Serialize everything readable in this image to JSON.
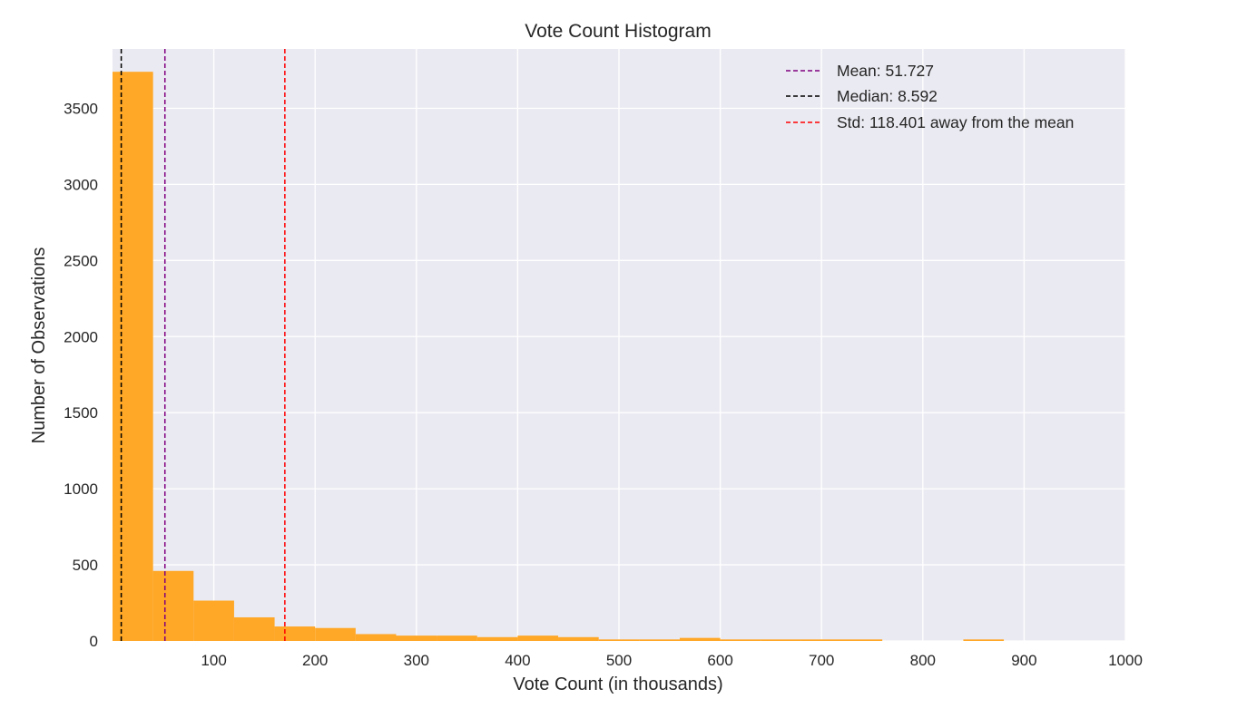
{
  "chart_data": {
    "type": "bar",
    "title": "Vote Count Histogram",
    "xlabel": "Vote Count (in thousands)",
    "ylabel": "Number of Observations",
    "xlim": [
      0,
      1000
    ],
    "ylim": [
      0,
      3890
    ],
    "xticks": [
      100,
      200,
      300,
      400,
      500,
      600,
      700,
      800,
      900,
      1000
    ],
    "yticks": [
      0,
      500,
      1000,
      1500,
      2000,
      2500,
      3000,
      3500
    ],
    "grid": true,
    "legend_position": "top-right",
    "bar_color": "#ffa726",
    "background_color": "#eaeaf2",
    "bins": [
      {
        "x0": 0,
        "x1": 40,
        "count": 3740
      },
      {
        "x0": 40,
        "x1": 80,
        "count": 460
      },
      {
        "x0": 80,
        "x1": 120,
        "count": 265
      },
      {
        "x0": 120,
        "x1": 160,
        "count": 155
      },
      {
        "x0": 160,
        "x1": 200,
        "count": 95
      },
      {
        "x0": 200,
        "x1": 240,
        "count": 85
      },
      {
        "x0": 240,
        "x1": 280,
        "count": 45
      },
      {
        "x0": 280,
        "x1": 320,
        "count": 35
      },
      {
        "x0": 320,
        "x1": 360,
        "count": 35
      },
      {
        "x0": 360,
        "x1": 400,
        "count": 25
      },
      {
        "x0": 400,
        "x1": 440,
        "count": 35
      },
      {
        "x0": 440,
        "x1": 480,
        "count": 25
      },
      {
        "x0": 480,
        "x1": 520,
        "count": 10
      },
      {
        "x0": 520,
        "x1": 560,
        "count": 10
      },
      {
        "x0": 560,
        "x1": 600,
        "count": 20
      },
      {
        "x0": 600,
        "x1": 640,
        "count": 10
      },
      {
        "x0": 640,
        "x1": 680,
        "count": 10
      },
      {
        "x0": 680,
        "x1": 720,
        "count": 10
      },
      {
        "x0": 720,
        "x1": 760,
        "count": 10
      },
      {
        "x0": 760,
        "x1": 800,
        "count": 0
      },
      {
        "x0": 800,
        "x1": 840,
        "count": 0
      },
      {
        "x0": 840,
        "x1": 880,
        "count": 10
      }
    ],
    "reference_lines": [
      {
        "name": "Mean: 51.727",
        "x": 51.727,
        "color": "#800080"
      },
      {
        "name": "Median: 8.592",
        "x": 8.592,
        "color": "#000000"
      },
      {
        "name": "Std: 118.401 away from the mean",
        "x": 170.128,
        "color": "#ff0000"
      }
    ]
  }
}
